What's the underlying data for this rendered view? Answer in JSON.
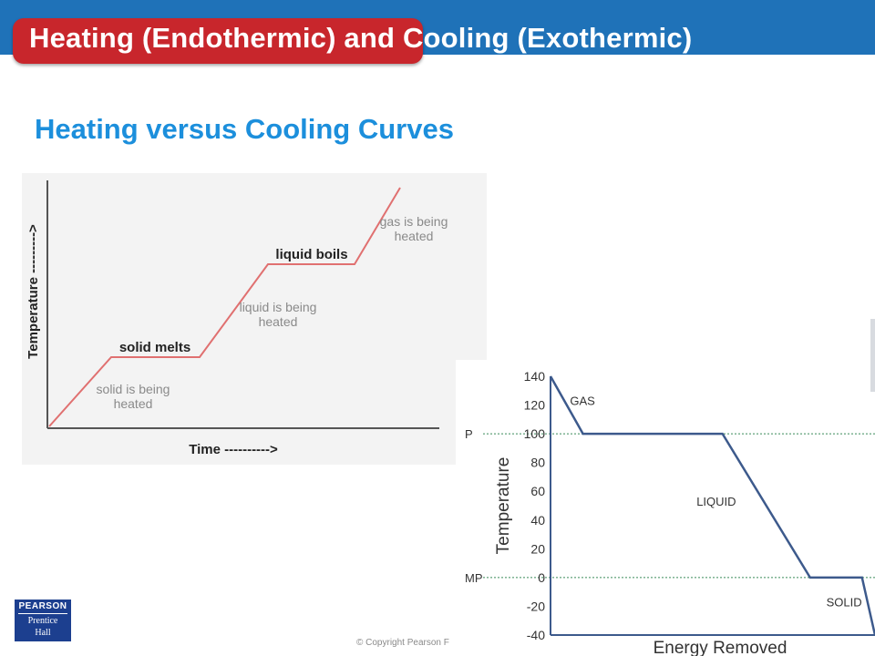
{
  "slide": {
    "title": "Heating (Endothermic) and Cooling (Exothermic)",
    "subtitle": "Heating versus Cooling Curves",
    "copyright": "© Copyright Pearson F",
    "logo": {
      "line1": "PEARSON",
      "line2": "Prentice",
      "line3": "Hall"
    },
    "colors": {
      "header": "#1f72b8",
      "title_pill": "#c8262c",
      "subtitle": "#1c8fdc"
    }
  },
  "chart_data": [
    {
      "type": "line",
      "xlabel": "Time ---------->",
      "ylabel": "Temperature --------->",
      "x_ticks": false,
      "y_ticks": false,
      "color": "#e07070",
      "annotations": [
        "solid is being heated",
        "solid melts",
        "liquid is being heated",
        "liquid boils",
        "gas is being heated"
      ]
    },
    {
      "type": "line",
      "xlabel": "Energy Removed",
      "ylabel": "Temperature",
      "ylim": [
        -40,
        140
      ],
      "yticks": [
        140,
        120,
        100,
        80,
        60,
        40,
        20,
        0,
        -20,
        -40
      ],
      "color": "#3d5a8c",
      "series": [
        {
          "x": [
            0,
            10,
            53,
            80,
            96,
            100
          ],
          "y": [
            140,
            100,
            100,
            0,
            0,
            -40
          ]
        }
      ],
      "xlim": [
        0,
        100
      ],
      "reference_lines": [
        {
          "label": "P",
          "y": 100
        },
        {
          "label": "MP",
          "y": 0
        }
      ],
      "annotations": [
        {
          "text": "GAS",
          "x": 6,
          "y": 120
        },
        {
          "text": "LIQUID",
          "x": 45,
          "y": 50
        },
        {
          "text": "SOLID",
          "x": 85,
          "y": -20
        }
      ]
    }
  ]
}
